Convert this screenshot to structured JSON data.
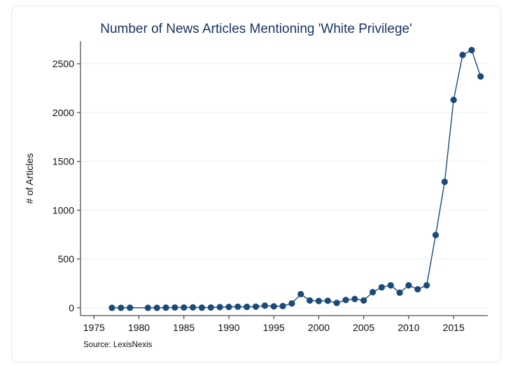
{
  "chart_data": {
    "type": "line",
    "title": "Number of News Articles Mentioning 'White Privilege'",
    "xlabel": "",
    "ylabel": "# of Articles",
    "note": "Source: LexisNexis",
    "xlim": [
      1973.5,
      2018.8
    ],
    "ylim": [
      -80,
      2730
    ],
    "xticks": [
      1975,
      1980,
      1985,
      1990,
      1995,
      2000,
      2005,
      2010,
      2015
    ],
    "yticks": [
      0,
      500,
      1000,
      1500,
      2000,
      2500
    ],
    "grid": "horizontal",
    "line_color": "#1a4a7a",
    "marker_color": "#1a4a7a",
    "series": [
      {
        "x": [
          1977,
          1978,
          1979,
          1981,
          1982,
          1983,
          1984,
          1985,
          1986,
          1987,
          1988,
          1989,
          1990,
          1991,
          1992,
          1993,
          1994,
          1995,
          1996,
          1997,
          1998,
          1999,
          2000,
          2001,
          2002,
          2003,
          2004,
          2005,
          2006,
          2007,
          2008,
          2009,
          2010,
          2011,
          2012,
          2013,
          2014,
          2015,
          2016,
          2017,
          2018
        ],
        "y": [
          0,
          0,
          1,
          0,
          0,
          2,
          3,
          3,
          4,
          2,
          3,
          7,
          9,
          11,
          10,
          12,
          22,
          15,
          18,
          45,
          140,
          75,
          70,
          72,
          50,
          80,
          90,
          75,
          160,
          210,
          230,
          155,
          230,
          190,
          230,
          745,
          1290,
          2130,
          2590,
          2640,
          2370
        ]
      }
    ]
  }
}
